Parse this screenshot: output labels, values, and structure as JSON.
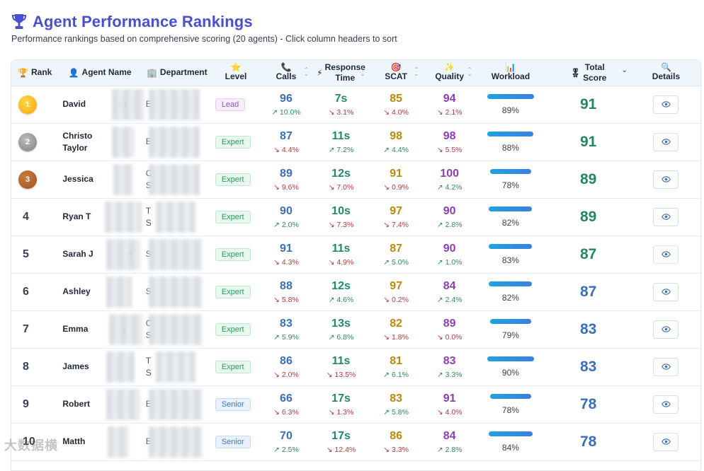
{
  "page": {
    "title": "Agent Performance Rankings",
    "subtitle": "Performance rankings based on comprehensive scoring (20 agents) - Click column headers to sort"
  },
  "columns": {
    "rank": "Rank",
    "agent_name": "Agent Name",
    "department": "Department",
    "level": "Level",
    "calls": "Calls",
    "response_line1": "Response",
    "response_line2": "Time",
    "scat": "SCAT",
    "quality": "Quality",
    "workload": "Workload",
    "total_line1": "Total",
    "total_line2": "Score",
    "details": "Details"
  },
  "colors": {
    "accent": "#4a4fd0",
    "green": "#26875d",
    "blue": "#3b6fb6",
    "gold": "#b78a10",
    "purple": "#8d3fb0",
    "up": "#2f8a5c",
    "down": "#b13c3c"
  },
  "rows": [
    {
      "rank": "1",
      "medal": "gold",
      "name1": "David",
      "name1b": "ez",
      "name2": "",
      "dept1": "E",
      "dept2": "",
      "level": "Lead",
      "level_class": "lead",
      "calls": "96",
      "calls_d": "10.0%",
      "calls_up": true,
      "resp": "7s",
      "resp_d": "3.1%",
      "resp_up": false,
      "scat": "85",
      "scat_d": "4.0%",
      "scat_up": false,
      "qual": "94",
      "qual_d": "2.1%",
      "qual_up": false,
      "workload": 0.89,
      "workload_txt": "89%",
      "total": "91",
      "total_color": "green"
    },
    {
      "rank": "2",
      "medal": "silver",
      "name1": "Christo",
      "name1b": "",
      "name2": "Taylor",
      "dept1": "E",
      "dept2": "",
      "level": "Expert",
      "level_class": "expert",
      "calls": "87",
      "calls_d": "4.4%",
      "calls_up": false,
      "resp": "11s",
      "resp_d": "7.2%",
      "resp_up": true,
      "scat": "98",
      "scat_d": "4.4%",
      "scat_up": true,
      "qual": "98",
      "qual_d": "5.5%",
      "qual_up": false,
      "workload": 0.88,
      "workload_txt": "88%",
      "total": "91",
      "total_color": "green"
    },
    {
      "rank": "3",
      "medal": "bronze",
      "name1": "Jessica",
      "name1b": "",
      "name2": "",
      "dept1": "C",
      "dept2": "S",
      "level": "Expert",
      "level_class": "expert",
      "calls": "89",
      "calls_d": "9.6%",
      "calls_up": false,
      "resp": "12s",
      "resp_d": "7.0%",
      "resp_up": false,
      "scat": "91",
      "scat_d": "0.9%",
      "scat_up": false,
      "qual": "100",
      "qual_d": "4.2%",
      "qual_up": true,
      "workload": 0.78,
      "workload_txt": "78%",
      "total": "89",
      "total_color": "green"
    },
    {
      "rank": "4",
      "medal": "",
      "name1": "Ryan T",
      "name1b": "",
      "name2": "",
      "dept1": "T",
      "dept2": "S",
      "level": "Expert",
      "level_class": "expert",
      "calls": "90",
      "calls_d": "2.0%",
      "calls_up": true,
      "resp": "10s",
      "resp_d": "7.3%",
      "resp_up": false,
      "scat": "97",
      "scat_d": "7.4%",
      "scat_up": false,
      "qual": "90",
      "qual_d": "2.8%",
      "qual_up": true,
      "workload": 0.82,
      "workload_txt": "82%",
      "total": "89",
      "total_color": "green"
    },
    {
      "rank": "5",
      "medal": "",
      "name1": "Sarah J",
      "name1b": "n",
      "name2": "",
      "dept1": "S",
      "dept2": "",
      "level": "Expert",
      "level_class": "expert",
      "calls": "91",
      "calls_d": "4.3%",
      "calls_up": false,
      "resp": "11s",
      "resp_d": "4.9%",
      "resp_up": false,
      "scat": "87",
      "scat_d": "5.0%",
      "scat_up": true,
      "qual": "90",
      "qual_d": "1.0%",
      "qual_up": true,
      "workload": 0.83,
      "workload_txt": "83%",
      "total": "87",
      "total_color": "green"
    },
    {
      "rank": "6",
      "medal": "",
      "name1": "Ashley",
      "name1b": "",
      "name2": "",
      "dept1": "S",
      "dept2": "",
      "level": "Expert",
      "level_class": "expert",
      "calls": "88",
      "calls_d": "5.8%",
      "calls_up": false,
      "resp": "12s",
      "resp_d": "4.6%",
      "resp_up": true,
      "scat": "97",
      "scat_d": "0.2%",
      "scat_up": false,
      "qual": "84",
      "qual_d": "2.4%",
      "qual_up": true,
      "workload": 0.82,
      "workload_txt": "82%",
      "total": "87",
      "total_color": "blue"
    },
    {
      "rank": "7",
      "medal": "",
      "name1": "Emma",
      "name1b": "s",
      "name2": "",
      "dept1": "C",
      "dept2": "S",
      "level": "Expert",
      "level_class": "expert",
      "calls": "83",
      "calls_d": "5.9%",
      "calls_up": true,
      "resp": "13s",
      "resp_d": "6.8%",
      "resp_up": true,
      "scat": "82",
      "scat_d": "1.8%",
      "scat_up": false,
      "qual": "89",
      "qual_d": "0.0%",
      "qual_up": false,
      "workload": 0.79,
      "workload_txt": "79%",
      "total": "83",
      "total_color": "blue"
    },
    {
      "rank": "8",
      "medal": "",
      "name1": "James",
      "name1b": "",
      "name2": "",
      "dept1": "T",
      "dept2": "S",
      "level": "Expert",
      "level_class": "expert",
      "calls": "86",
      "calls_d": "2.0%",
      "calls_up": false,
      "resp": "11s",
      "resp_d": "13.5%",
      "resp_up": false,
      "scat": "81",
      "scat_d": "6.1%",
      "scat_up": true,
      "qual": "83",
      "qual_d": "3.3%",
      "qual_up": true,
      "workload": 0.9,
      "workload_txt": "90%",
      "total": "83",
      "total_color": "blue"
    },
    {
      "rank": "9",
      "medal": "",
      "name1": "Robert",
      "name1b": "",
      "name2": "",
      "dept1": "E",
      "dept2": "",
      "level": "Senior",
      "level_class": "senior",
      "calls": "66",
      "calls_d": "6.3%",
      "calls_up": false,
      "resp": "17s",
      "resp_d": "1.3%",
      "resp_up": false,
      "scat": "83",
      "scat_d": "5.8%",
      "scat_up": true,
      "qual": "91",
      "qual_d": "4.0%",
      "qual_up": false,
      "workload": 0.78,
      "workload_txt": "78%",
      "total": "78",
      "total_color": "blue"
    },
    {
      "rank": "10",
      "medal": "",
      "name1": "Matth",
      "name1b": "",
      "name2": "",
      "dept1": "E",
      "dept2": "",
      "level": "Senior",
      "level_class": "senior",
      "calls": "70",
      "calls_d": "2.5%",
      "calls_up": true,
      "resp": "17s",
      "resp_d": "12.4%",
      "resp_up": false,
      "scat": "86",
      "scat_d": "3.3%",
      "scat_up": false,
      "qual": "84",
      "qual_d": "2.8%",
      "qual_up": true,
      "workload": 0.84,
      "workload_txt": "84%",
      "total": "78",
      "total_color": "blue"
    }
  ],
  "watermark": "大数据横"
}
